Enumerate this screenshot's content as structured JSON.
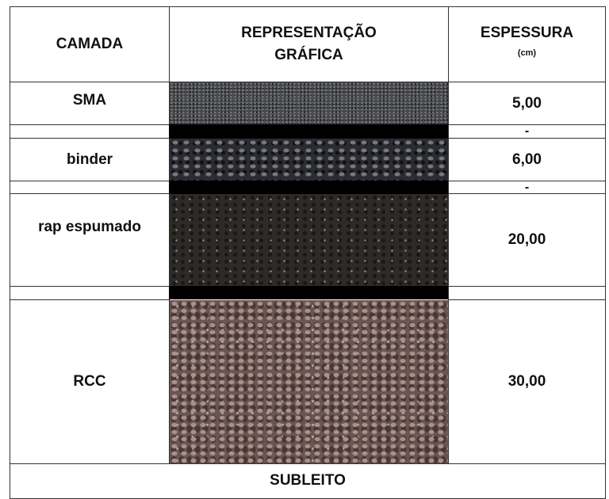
{
  "table": {
    "header": [
      "CAMADA",
      "REPRESENTAÇÃO GRÁFICA",
      "ESPESSURA",
      "(cm)"
    ],
    "rows": [
      [
        "SMA",
        "5,00"
      ],
      [
        "-"
      ],
      [
        "binder",
        "6,00"
      ],
      [
        "-"
      ],
      [
        "rap espumado",
        "20,00"
      ],
      [
        "RCC",
        "30,00"
      ]
    ],
    "footer": "SUBLEITO"
  }
}
